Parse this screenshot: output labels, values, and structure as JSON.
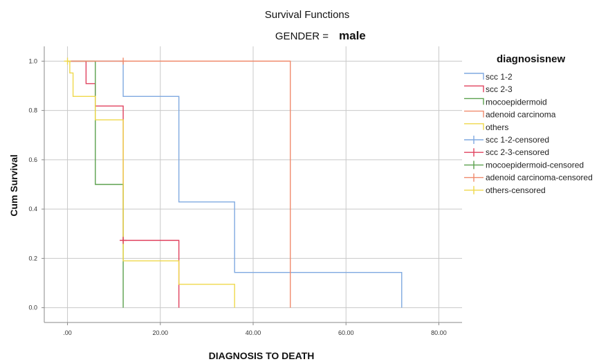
{
  "chart_data": {
    "type": "line",
    "title": "Survival Functions",
    "subtitle_label": "GENDER =",
    "subtitle_value": "male",
    "xlabel": "DIAGNOSIS TO DEATH",
    "ylabel": "Cum Survival",
    "xlim": [
      -5,
      85
    ],
    "ylim": [
      -0.06,
      1.06
    ],
    "x_ticks": [
      0,
      20,
      40,
      60,
      80
    ],
    "x_tick_labels": [
      ".00",
      "20.00",
      "40.00",
      "60.00",
      "80.00"
    ],
    "y_ticks": [
      0,
      0.2,
      0.4,
      0.6,
      0.8,
      1.0
    ],
    "y_tick_labels": [
      "0.0",
      "0.2",
      "0.4",
      "0.6",
      "0.8",
      "1.0"
    ],
    "grid": true,
    "legend_title": "diagnosisnew",
    "legend_position": "right",
    "series": [
      {
        "name": "scc 1-2",
        "color": "#7fa9e0",
        "steps": [
          [
            0,
            1.0
          ],
          [
            12,
            0.857
          ],
          [
            24,
            0.429
          ],
          [
            36,
            0.143
          ],
          [
            72,
            0.0
          ]
        ]
      },
      {
        "name": "scc 2-3",
        "color": "#e0405d",
        "steps": [
          [
            0,
            1.0
          ],
          [
            4,
            0.909
          ],
          [
            6,
            0.818
          ],
          [
            12,
            0.273
          ],
          [
            24,
            0.0
          ]
        ]
      },
      {
        "name": "mocoepidermoid",
        "color": "#5aa04c",
        "steps": [
          [
            0,
            1.0
          ],
          [
            6,
            0.5
          ],
          [
            12,
            0.0
          ]
        ]
      },
      {
        "name": "adenoid carcinoma",
        "color": "#f08a6c",
        "steps": [
          [
            0,
            1.0
          ],
          [
            48,
            0.0
          ]
        ]
      },
      {
        "name": "others",
        "color": "#efd84a",
        "steps": [
          [
            0,
            1.0
          ],
          [
            0.5,
            0.952
          ],
          [
            1.2,
            0.857
          ],
          [
            6,
            0.762
          ],
          [
            12,
            0.19
          ],
          [
            24,
            0.095
          ],
          [
            36,
            0.0
          ]
        ]
      }
    ],
    "censored_series": [
      {
        "name": "scc 1-2-censored",
        "color": "#7fa9e0",
        "points": []
      },
      {
        "name": "scc 2-3-censored",
        "color": "#e0405d",
        "points": [
          [
            12,
            0.273
          ]
        ]
      },
      {
        "name": "mocoepidermoid-censored",
        "color": "#5aa04c",
        "points": []
      },
      {
        "name": "adenoid carcinoma-censored",
        "color": "#f08a6c",
        "points": [
          [
            12,
            1.0
          ]
        ]
      },
      {
        "name": "others-censored",
        "color": "#efd84a",
        "points": [
          [
            0,
            1.0
          ]
        ]
      }
    ],
    "frame_color": "#8a8a8a",
    "grid_color": "#c8c8c8"
  }
}
